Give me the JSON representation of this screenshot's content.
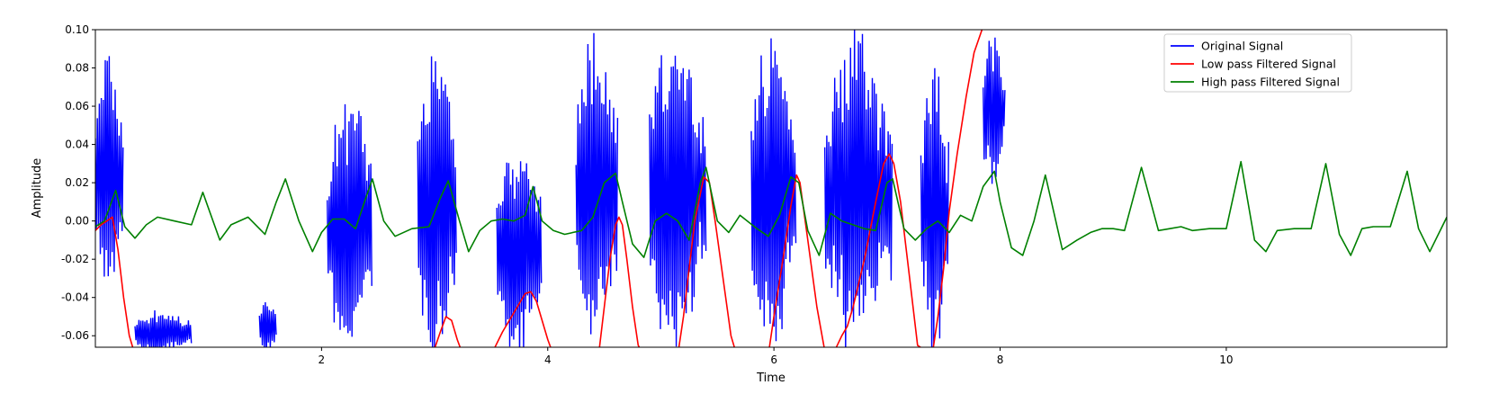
{
  "chart_data": {
    "type": "line",
    "title": "",
    "xlabel": "Time",
    "ylabel": "Amplitude",
    "xlim": [
      0,
      11.95
    ],
    "ylim": [
      -0.066,
      0.1
    ],
    "x_ticks": [
      2,
      4,
      6,
      8,
      10
    ],
    "x_tick_labels": [
      "2",
      "4",
      "6",
      "8",
      "10"
    ],
    "y_ticks": [
      -0.06,
      -0.04,
      -0.02,
      0.0,
      0.02,
      0.04,
      0.06,
      0.08,
      0.1
    ],
    "y_tick_labels": [
      "-0.06",
      "-0.04",
      "-0.02",
      "0.00",
      "0.02",
      "0.04",
      "0.06",
      "0.08",
      "0.10"
    ],
    "grid": false,
    "legend_position": "top-right",
    "series": [
      {
        "name": "Original Signal",
        "color": "#0000ff",
        "style": "dense oscillating bursts clipped by the axes",
        "bursts": [
          {
            "x": [
              0.0,
              0.25
            ],
            "ymin": -0.04,
            "ymax": 0.083
          },
          {
            "x": [
              0.35,
              0.85
            ],
            "ymin": -0.07,
            "ymax": -0.047
          },
          {
            "x": [
              1.45,
              1.6
            ],
            "ymin": -0.07,
            "ymax": -0.04
          },
          {
            "x": [
              2.05,
              2.45
            ],
            "ymin": -0.07,
            "ymax": 0.069
          },
          {
            "x": [
              2.85,
              3.2
            ],
            "ymin": -0.07,
            "ymax": 0.093
          },
          {
            "x": [
              3.55,
              3.95
            ],
            "ymin": -0.07,
            "ymax": 0.041
          },
          {
            "x": [
              4.25,
              4.62
            ],
            "ymin": -0.07,
            "ymax": 0.1
          },
          {
            "x": [
              4.9,
              5.4
            ],
            "ymin": -0.07,
            "ymax": 0.1
          },
          {
            "x": [
              5.8,
              6.2
            ],
            "ymin": -0.07,
            "ymax": 0.1
          },
          {
            "x": [
              6.45,
              7.05
            ],
            "ymin": -0.07,
            "ymax": 0.1
          },
          {
            "x": [
              7.3,
              7.55
            ],
            "ymin": -0.07,
            "ymax": 0.082
          },
          {
            "x": [
              7.85,
              8.05
            ],
            "ymin": 0.015,
            "ymax": 0.1
          }
        ]
      },
      {
        "name": "Low pass Filtered Signal",
        "color": "#ff0000",
        "x": [
          0.0,
          0.05,
          0.1,
          0.15,
          0.2,
          0.25,
          0.3,
          0.35,
          2.98,
          3.05,
          3.1,
          3.15,
          3.2,
          3.25,
          3.3,
          3.5,
          3.6,
          3.7,
          3.8,
          3.85,
          3.9,
          4.0,
          4.05,
          4.1,
          4.45,
          4.5,
          4.55,
          4.6,
          4.63,
          4.66,
          4.7,
          4.75,
          4.8,
          4.85,
          5.15,
          5.2,
          5.25,
          5.3,
          5.38,
          5.43,
          5.48,
          5.55,
          5.62,
          5.67,
          5.95,
          6.0,
          6.08,
          6.15,
          6.2,
          6.23,
          6.3,
          6.38,
          6.45,
          6.52,
          6.6,
          6.65,
          6.7,
          6.8,
          6.9,
          6.97,
          7.02,
          7.06,
          7.12,
          7.2,
          7.27,
          7.4,
          7.45,
          7.5,
          7.55,
          7.62,
          7.7,
          7.77,
          7.84
        ],
        "y": [
          -0.005,
          -0.002,
          0.0,
          0.002,
          -0.015,
          -0.04,
          -0.06,
          -0.07,
          -0.07,
          -0.058,
          -0.05,
          -0.052,
          -0.062,
          -0.07,
          -0.07,
          -0.07,
          -0.058,
          -0.048,
          -0.038,
          -0.037,
          -0.042,
          -0.062,
          -0.07,
          -0.07,
          -0.07,
          -0.045,
          -0.02,
          -0.002,
          0.002,
          -0.002,
          -0.02,
          -0.045,
          -0.065,
          -0.07,
          -0.07,
          -0.05,
          -0.025,
          0.0,
          0.023,
          0.02,
          0.0,
          -0.03,
          -0.06,
          -0.07,
          -0.07,
          -0.05,
          -0.02,
          0.008,
          0.024,
          0.02,
          -0.01,
          -0.045,
          -0.068,
          -0.07,
          -0.06,
          -0.055,
          -0.045,
          -0.02,
          0.01,
          0.03,
          0.035,
          0.03,
          0.01,
          -0.03,
          -0.065,
          -0.07,
          -0.05,
          -0.025,
          0.005,
          0.035,
          0.065,
          0.088,
          0.1
        ]
      },
      {
        "name": "High pass Filtered Signal",
        "color": "#008000",
        "x": [
          0.0,
          0.08,
          0.18,
          0.26,
          0.35,
          0.45,
          0.55,
          0.7,
          0.85,
          0.95,
          1.1,
          1.2,
          1.35,
          1.5,
          1.6,
          1.68,
          1.8,
          1.92,
          2.0,
          2.1,
          2.2,
          2.3,
          2.38,
          2.45,
          2.55,
          2.65,
          2.8,
          2.95,
          3.05,
          3.12,
          3.22,
          3.3,
          3.4,
          3.5,
          3.6,
          3.7,
          3.8,
          3.87,
          3.95,
          4.05,
          4.15,
          4.3,
          4.4,
          4.5,
          4.6,
          4.66,
          4.75,
          4.85,
          4.95,
          5.05,
          5.15,
          5.25,
          5.35,
          5.4,
          5.5,
          5.6,
          5.7,
          5.85,
          5.95,
          6.05,
          6.15,
          6.22,
          6.3,
          6.4,
          6.5,
          6.6,
          6.7,
          6.8,
          6.9,
          7.0,
          7.05,
          7.15,
          7.25,
          7.35,
          7.45,
          7.55,
          7.65,
          7.75,
          7.85,
          7.95,
          8.0,
          8.1,
          8.2,
          8.3,
          8.4,
          8.55,
          8.68,
          8.8,
          8.9,
          9.0,
          9.1,
          9.25,
          9.4,
          9.5,
          9.6,
          9.7,
          9.85,
          10.0,
          10.13,
          10.25,
          10.35,
          10.45,
          10.6,
          10.75,
          10.88,
          11.0,
          11.1,
          11.2,
          11.3,
          11.45,
          11.6,
          11.7,
          11.8,
          11.95
        ],
        "y": [
          -0.003,
          0.0,
          0.016,
          -0.003,
          -0.009,
          -0.002,
          0.002,
          0.0,
          -0.002,
          0.015,
          -0.01,
          -0.002,
          0.002,
          -0.007,
          0.01,
          0.022,
          0.0,
          -0.016,
          -0.006,
          0.001,
          0.001,
          -0.004,
          0.01,
          0.022,
          0.0,
          -0.008,
          -0.004,
          -0.003,
          0.012,
          0.021,
          0.0,
          -0.016,
          -0.005,
          0.0,
          0.001,
          0.0,
          0.003,
          0.018,
          0.0,
          -0.005,
          -0.007,
          -0.005,
          0.002,
          0.02,
          0.025,
          0.01,
          -0.012,
          -0.019,
          0.0,
          0.004,
          0.0,
          -0.01,
          0.02,
          0.028,
          0.0,
          -0.006,
          0.003,
          -0.004,
          -0.008,
          0.003,
          0.023,
          0.02,
          -0.005,
          -0.018,
          0.004,
          0.0,
          -0.002,
          -0.004,
          -0.005,
          0.02,
          0.022,
          -0.004,
          -0.01,
          -0.004,
          0.0,
          -0.006,
          0.003,
          0.0,
          0.018,
          0.026,
          0.01,
          -0.014,
          -0.018,
          0.0,
          0.024,
          -0.015,
          -0.01,
          -0.006,
          -0.004,
          -0.004,
          -0.005,
          0.028,
          -0.005,
          -0.004,
          -0.003,
          -0.005,
          -0.004,
          -0.004,
          0.031,
          -0.01,
          -0.016,
          -0.005,
          -0.004,
          -0.004,
          0.03,
          -0.007,
          -0.018,
          -0.004,
          -0.003,
          -0.003,
          0.026,
          -0.004,
          -0.016,
          0.002
        ]
      }
    ]
  }
}
